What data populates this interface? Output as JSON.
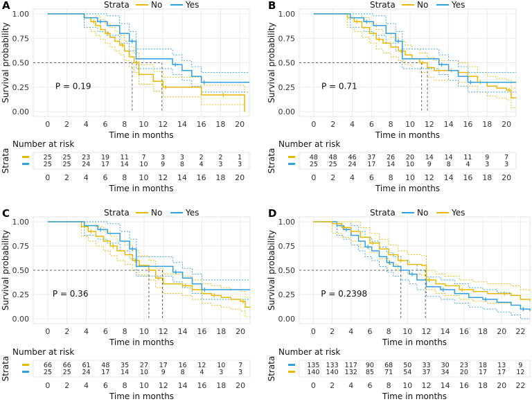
{
  "common": {
    "xlabel": "Time in months",
    "ylabel": "Survival probability",
    "risk_title": "Number at risk",
    "strata_label": "Strata",
    "colors": {
      "gold": "#E7B800",
      "blue": "#2E9FDF"
    }
  },
  "chart_data": [
    {
      "type": "line",
      "panel": "A",
      "title": "",
      "legend": {
        "title": "Strata",
        "items": [
          {
            "name": "No",
            "color": "#E7B800"
          },
          {
            "name": "Yes",
            "color": "#2E9FDF"
          }
        ]
      },
      "xlabel": "Time in months",
      "ylabel": "Survival probability",
      "xlim": [
        -1.5,
        21
      ],
      "ylim": [
        0,
        1
      ],
      "xticks": [
        0,
        2,
        4,
        6,
        8,
        10,
        12,
        14,
        16,
        18,
        20
      ],
      "yticks": [
        "0.00",
        "0.25",
        "0.50",
        "0.75",
        "1.00"
      ],
      "pvalue": "P = 0.19",
      "median_lines": [
        8.8,
        11.9
      ],
      "series": [
        {
          "name": "No",
          "color": "#E7B800",
          "x": [
            0,
            3.8,
            4.5,
            5.0,
            5.5,
            6.0,
            6.5,
            7.0,
            7.5,
            8.0,
            8.5,
            9.0,
            9.5,
            11.0,
            12.0,
            13.0,
            16.0,
            18.0,
            20.0,
            20.5
          ],
          "y": [
            1.0,
            0.96,
            0.92,
            0.88,
            0.84,
            0.8,
            0.76,
            0.72,
            0.68,
            0.62,
            0.56,
            0.5,
            0.38,
            0.31,
            0.25,
            0.25,
            0.17,
            0.17,
            0.17,
            0.0
          ]
        },
        {
          "name": "Yes",
          "color": "#2E9FDF",
          "x": [
            0,
            3.8,
            5.2,
            6.2,
            7.5,
            8.5,
            9.2,
            12.0,
            13.0,
            14.0,
            15.0,
            16.0,
            17.0,
            21.0
          ],
          "y": [
            1.0,
            0.96,
            0.92,
            0.88,
            0.8,
            0.72,
            0.54,
            0.54,
            0.48,
            0.42,
            0.36,
            0.3,
            0.3,
            0.3
          ]
        }
      ],
      "risk_table": {
        "categories": [
          "0",
          "2",
          "4",
          "6",
          "8",
          "10",
          "12",
          "14",
          "16",
          "18",
          "20"
        ],
        "rows": [
          {
            "name": "No",
            "color": "#E7B800",
            "values": [
              "25",
              "25",
              "23",
              "19",
              "11",
              "7",
              "3",
              "3",
              "2",
              "2",
              "1"
            ]
          },
          {
            "name": "Yes",
            "color": "#2E9FDF",
            "values": [
              "25",
              "25",
              "24",
              "17",
              "14",
              "10",
              "9",
              "8",
              "4",
              "3",
              "3"
            ]
          }
        ]
      }
    },
    {
      "type": "line",
      "panel": "B",
      "title": "",
      "legend": {
        "title": "Strata",
        "items": [
          {
            "name": "No",
            "color": "#E7B800"
          },
          {
            "name": "Yes",
            "color": "#2E9FDF"
          }
        ]
      },
      "xlabel": "Time in months",
      "ylabel": "Survival probability",
      "xlim": [
        -1.5,
        21
      ],
      "ylim": [
        0,
        1
      ],
      "xticks": [
        0,
        2,
        4,
        6,
        8,
        10,
        12,
        14,
        16,
        18,
        20
      ],
      "yticks": [
        "0.00",
        "0.25",
        "0.50",
        "0.75",
        "1.00"
      ],
      "pvalue": "P = 0.71",
      "median_lines": [
        11.2,
        11.8
      ],
      "series": [
        {
          "name": "No",
          "color": "#E7B800",
          "x": [
            0,
            3.5,
            4.2,
            5.0,
            5.8,
            6.5,
            7.2,
            8.0,
            8.8,
            9.5,
            10.2,
            11.0,
            11.8,
            12.5,
            14.0,
            15.0,
            16.0,
            17.0,
            18.0,
            19.0,
            20.0,
            20.5,
            21.0
          ],
          "y": [
            1.0,
            0.96,
            0.92,
            0.86,
            0.8,
            0.74,
            0.7,
            0.66,
            0.62,
            0.58,
            0.54,
            0.5,
            0.45,
            0.42,
            0.42,
            0.4,
            0.36,
            0.3,
            0.26,
            0.24,
            0.22,
            0.14,
            0.14
          ]
        },
        {
          "name": "Yes",
          "color": "#2E9FDF",
          "x": [
            0,
            3.8,
            5.2,
            6.2,
            7.5,
            8.5,
            9.2,
            12.0,
            13.0,
            14.0,
            15.0,
            16.0,
            17.0,
            21.0
          ],
          "y": [
            1.0,
            0.96,
            0.92,
            0.88,
            0.8,
            0.72,
            0.54,
            0.54,
            0.48,
            0.42,
            0.36,
            0.3,
            0.3,
            0.3
          ]
        }
      ],
      "risk_table": {
        "categories": [
          "0",
          "2",
          "4",
          "6",
          "8",
          "10",
          "12",
          "14",
          "16",
          "18",
          "20"
        ],
        "rows": [
          {
            "name": "No",
            "color": "#E7B800",
            "values": [
              "48",
              "48",
              "46",
              "37",
              "26",
              "20",
              "14",
              "14",
              "11",
              "9",
              "7"
            ]
          },
          {
            "name": "Yes",
            "color": "#2E9FDF",
            "values": [
              "25",
              "25",
              "24",
              "17",
              "14",
              "10",
              "9",
              "8",
              "4",
              "3",
              "3"
            ]
          }
        ]
      }
    },
    {
      "type": "line",
      "panel": "C",
      "title": "",
      "legend": {
        "title": "Strata",
        "items": [
          {
            "name": "No",
            "color": "#E7B800"
          },
          {
            "name": "Yes",
            "color": "#2E9FDF"
          }
        ]
      },
      "xlabel": "Time in months",
      "ylabel": "Survival probability",
      "xlim": [
        -1.5,
        21
      ],
      "ylim": [
        0,
        1
      ],
      "xticks": [
        0,
        2,
        4,
        6,
        8,
        10,
        12,
        14,
        16,
        18,
        20
      ],
      "yticks": [
        "0.00",
        "0.25",
        "0.50",
        "0.75",
        "1.00"
      ],
      "pvalue": "P = 0.36",
      "median_lines": [
        10.5,
        11.9
      ],
      "series": [
        {
          "name": "No",
          "color": "#E7B800",
          "x": [
            0,
            3.5,
            4.2,
            5.0,
            5.8,
            6.5,
            7.2,
            8.0,
            8.8,
            9.5,
            10.5,
            11.2,
            12.0,
            13.0,
            14.0,
            15.0,
            16.0,
            17.0,
            18.0,
            19.0,
            20.0,
            20.5,
            21.0
          ],
          "y": [
            1.0,
            0.95,
            0.9,
            0.85,
            0.8,
            0.75,
            0.7,
            0.66,
            0.6,
            0.55,
            0.5,
            0.42,
            0.36,
            0.36,
            0.34,
            0.3,
            0.26,
            0.24,
            0.22,
            0.2,
            0.18,
            0.12,
            0.12
          ]
        },
        {
          "name": "Yes",
          "color": "#2E9FDF",
          "x": [
            0,
            3.8,
            5.2,
            6.2,
            7.5,
            8.5,
            9.2,
            12.0,
            13.0,
            14.0,
            15.0,
            16.0,
            17.0,
            21.0
          ],
          "y": [
            1.0,
            0.96,
            0.92,
            0.88,
            0.8,
            0.72,
            0.54,
            0.54,
            0.48,
            0.42,
            0.36,
            0.3,
            0.3,
            0.3
          ]
        }
      ],
      "risk_table": {
        "categories": [
          "0",
          "2",
          "4",
          "6",
          "8",
          "10",
          "12",
          "14",
          "16",
          "18",
          "20"
        ],
        "rows": [
          {
            "name": "No",
            "color": "#E7B800",
            "values": [
              "66",
              "66",
              "61",
              "48",
              "35",
              "27",
              "17",
              "16",
              "12",
              "10",
              "7"
            ]
          },
          {
            "name": "Yes",
            "color": "#2E9FDF",
            "values": [
              "25",
              "25",
              "24",
              "17",
              "14",
              "10",
              "9",
              "8",
              "4",
              "3",
              "3"
            ]
          }
        ]
      }
    },
    {
      "type": "line",
      "panel": "D",
      "title": "",
      "legend": {
        "title": "Strata",
        "items": [
          {
            "name": "No",
            "color": "#2E9FDF"
          },
          {
            "name": "Yes",
            "color": "#E7B800"
          }
        ]
      },
      "xlabel": "Time in months",
      "ylabel": "Survival probability",
      "xlim": [
        -1.5,
        23
      ],
      "ylim": [
        0,
        1
      ],
      "xticks": [
        0,
        2,
        4,
        6,
        8,
        10,
        12,
        14,
        16,
        18,
        20,
        22
      ],
      "yticks": [
        "0.00",
        "0.25",
        "0.50",
        "0.75",
        "1.00"
      ],
      "pvalue": "P = 0.2398",
      "median_lines": [
        9.3,
        11.9
      ],
      "series": [
        {
          "name": "No",
          "color": "#2E9FDF",
          "x": [
            0,
            2.5,
            3.2,
            4.0,
            4.8,
            5.5,
            6.2,
            7.0,
            7.8,
            8.5,
            9.3,
            10.2,
            11.0,
            12.0,
            13.5,
            15.0,
            16.5,
            18.0,
            19.5,
            21.0,
            22.0,
            23.0
          ],
          "y": [
            1.0,
            0.96,
            0.92,
            0.86,
            0.8,
            0.74,
            0.7,
            0.64,
            0.58,
            0.54,
            0.5,
            0.46,
            0.4,
            0.33,
            0.3,
            0.26,
            0.22,
            0.2,
            0.17,
            0.14,
            0.1,
            0.08
          ]
        },
        {
          "name": "Yes",
          "color": "#E7B800",
          "x": [
            0,
            2.0,
            3.0,
            4.0,
            5.0,
            6.0,
            7.0,
            8.0,
            9.0,
            10.0,
            11.5,
            12.0,
            13.0,
            14.0,
            15.5,
            17.0,
            18.5,
            20.0,
            21.0,
            22.0,
            23.0
          ],
          "y": [
            1.0,
            0.98,
            0.94,
            0.9,
            0.84,
            0.78,
            0.72,
            0.66,
            0.6,
            0.56,
            0.55,
            0.4,
            0.36,
            0.34,
            0.3,
            0.28,
            0.26,
            0.26,
            0.24,
            0.2,
            0.18
          ]
        }
      ],
      "risk_table": {
        "categories": [
          "0",
          "2",
          "4",
          "6",
          "8",
          "10",
          "12",
          "14",
          "16",
          "18",
          "20",
          "22"
        ],
        "rows": [
          {
            "name": "No",
            "color": "#2E9FDF",
            "values": [
              "135",
              "133",
              "117",
              "90",
              "68",
              "50",
              "33",
              "30",
              "23",
              "18",
              "13",
              "9"
            ]
          },
          {
            "name": "Yes",
            "color": "#E7B800",
            "values": [
              "140",
              "140",
              "132",
              "85",
              "71",
              "54",
              "37",
              "34",
              "20",
              "17",
              "17",
              "12"
            ]
          }
        ]
      }
    }
  ]
}
